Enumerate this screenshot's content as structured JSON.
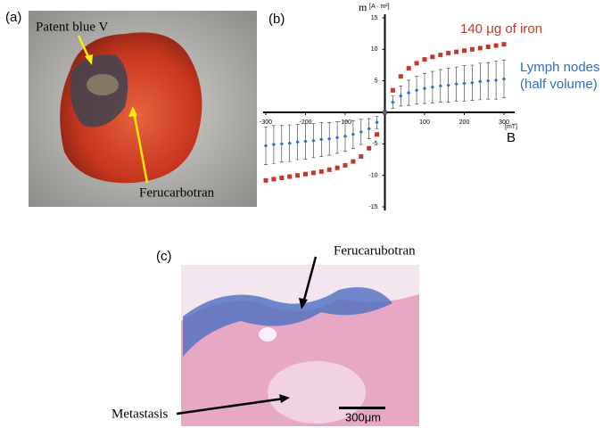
{
  "panel_labels": [
    "(a)",
    "(b)",
    "(c)"
  ],
  "photo_a": {
    "labels": [
      "Patent blue V",
      "Ferucarbotran"
    ]
  },
  "photo_c": {
    "labels": [
      "Ferucarubotran",
      "Metastasis"
    ],
    "scale_bar": "300μm"
  },
  "chart_data": {
    "type": "scatter",
    "y_label": "m",
    "y_unit": "[A · m²]",
    "x_label": "B",
    "x_unit": "[mT]",
    "x": [
      -300,
      -280,
      -260,
      -240,
      -220,
      -200,
      -180,
      -160,
      -140,
      -120,
      -100,
      -80,
      -60,
      -40,
      -20,
      0,
      20,
      40,
      60,
      80,
      100,
      120,
      140,
      160,
      180,
      200,
      220,
      240,
      260,
      280,
      300
    ],
    "series": [
      {
        "name": "140 μg of iron",
        "color": "#c0392b",
        "values": [
          -10.8,
          -10.6,
          -10.4,
          -10.2,
          -10.0,
          -9.8,
          -9.6,
          -9.4,
          -9.1,
          -8.8,
          -8.4,
          -7.8,
          -7.0,
          -5.7,
          -3.5,
          0,
          3.5,
          5.7,
          7.0,
          7.8,
          8.4,
          8.8,
          9.1,
          9.4,
          9.6,
          9.8,
          10.0,
          10.2,
          10.4,
          10.6,
          10.8
        ]
      },
      {
        "name": "Lymph nodes (half volume)",
        "color": "#2f6fbf",
        "values": [
          -5.3,
          -5.1,
          -5.0,
          -4.9,
          -4.7,
          -4.6,
          -4.5,
          -4.3,
          -4.2,
          -4.0,
          -3.8,
          -3.5,
          -3.1,
          -2.6,
          -1.6,
          0,
          1.6,
          2.6,
          3.1,
          3.5,
          3.8,
          4.0,
          4.2,
          4.3,
          4.5,
          4.6,
          4.7,
          4.9,
          5.0,
          5.1,
          5.3
        ],
        "errors": [
          3.0,
          3.0,
          2.9,
          2.9,
          2.8,
          2.8,
          2.7,
          2.7,
          2.6,
          2.5,
          2.4,
          2.2,
          2.0,
          1.6,
          1.0,
          0,
          1.0,
          1.6,
          2.0,
          2.2,
          2.4,
          2.5,
          2.6,
          2.7,
          2.7,
          2.8,
          2.8,
          2.9,
          2.9,
          3.0,
          3.0
        ]
      }
    ],
    "xlim": [
      -300,
      300
    ],
    "ylim": [
      -15,
      15
    ],
    "xticks": [
      -300,
      -200,
      -100,
      100,
      200,
      300
    ],
    "yticks": [
      -15,
      -10,
      -5,
      5,
      10,
      15
    ]
  }
}
